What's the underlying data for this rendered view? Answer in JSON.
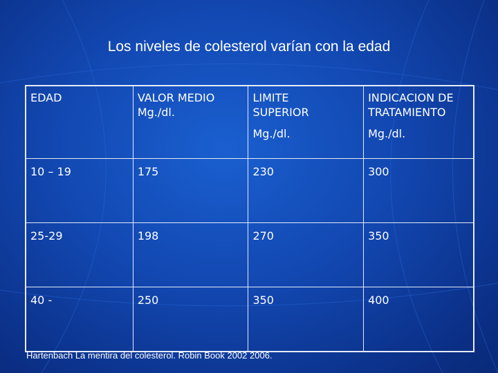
{
  "slide": {
    "title": "Los niveles de colesterol varían con la edad",
    "footer": "Hartenbach La mentira del colesterol. Robin Book 2002 2006."
  },
  "table": {
    "headers": [
      {
        "line1": "EDAD",
        "line2": "",
        "line3": ""
      },
      {
        "line1": "VALOR MEDIO",
        "line2": "Mg./dl.",
        "line3": ""
      },
      {
        "line1": "LIMITE",
        "line2": "SUPERIOR",
        "line3": "Mg./dl."
      },
      {
        "line1": "INDICACION DE",
        "line2": "TRATAMIENTO",
        "line3": "Mg./dl."
      }
    ],
    "rows": [
      [
        "10 – 19",
        "175",
        "230",
        "300"
      ],
      [
        "25-29",
        "198",
        "270",
        "350"
      ],
      [
        "40 -",
        "250",
        "350",
        "400"
      ]
    ]
  }
}
